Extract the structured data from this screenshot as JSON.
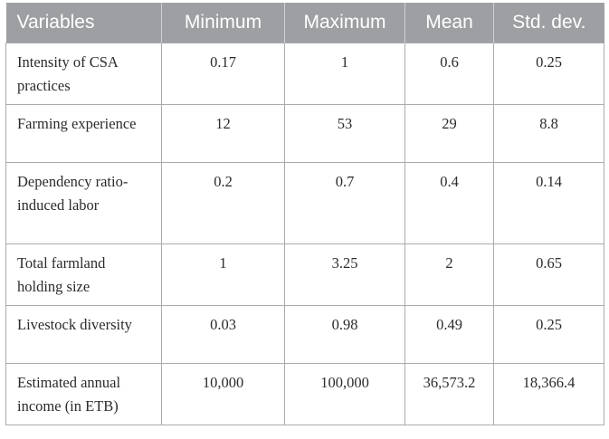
{
  "table": {
    "headers": [
      "Variables",
      "Minimum",
      "Maximum",
      "Mean",
      "Std. dev."
    ],
    "rows": [
      [
        "Intensity of CSA practices",
        "0.17",
        "1",
        "0.6",
        "0.25"
      ],
      [
        "Farming experience",
        "12",
        "53",
        "29",
        "8.8"
      ],
      [
        "Dependency ratio-induced labor",
        "0.2",
        "0.7",
        "0.4",
        "0.14"
      ],
      [
        "Total farmland holding size",
        "1",
        "3.25",
        "2",
        "0.65"
      ],
      [
        "Livestock diversity",
        "0.03",
        "0.98",
        "0.49",
        "0.25"
      ],
      [
        "Estimated annual income (in ETB)",
        "10,000",
        "100,000",
        "36,573.2",
        "18,366.4"
      ]
    ]
  }
}
